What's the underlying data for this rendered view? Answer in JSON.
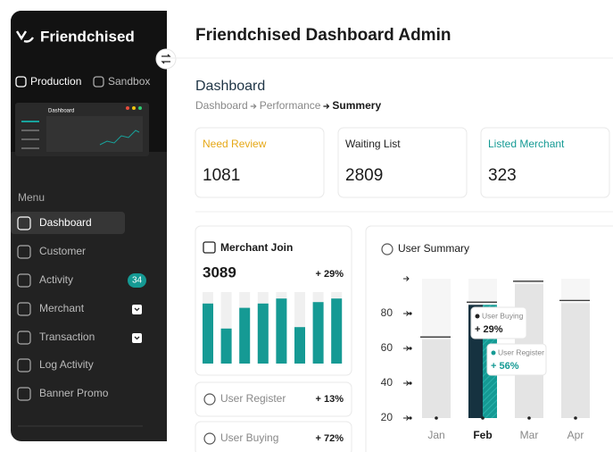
{
  "sidebar": {
    "brand": "Friendchised",
    "tabs": [
      "Production",
      "Sandbox"
    ],
    "preview_title": "Dashboard",
    "menu_label": "Menu",
    "menu": [
      {
        "label": "Dashboard"
      },
      {
        "label": "Customer"
      },
      {
        "label": "Activity",
        "badge": "34"
      },
      {
        "label": "Merchant"
      },
      {
        "label": "Transaction"
      },
      {
        "label": "Log Activity"
      },
      {
        "label": "Banner Promo"
      }
    ]
  },
  "header": {
    "title": "Friendchised Dashboard Admin"
  },
  "page": {
    "title": "Dashboard",
    "breadcrumb": [
      "Dashboard",
      "Performance",
      "Summery"
    ]
  },
  "stats": [
    {
      "label": "Need Review",
      "value": 1081
    },
    {
      "label": "Waiting List",
      "value": 2809
    },
    {
      "label": "Listed Merchant",
      "value": 323
    }
  ],
  "merchant_join": {
    "title": "Merchant Join",
    "total": 3089,
    "change": "+ 29%",
    "bars": [
      84,
      49,
      78,
      84,
      91,
      51,
      86,
      91
    ]
  },
  "metrics": [
    {
      "label": "User Register",
      "change": "+ 13%"
    },
    {
      "label": "User Buying",
      "change": "+ 72%"
    }
  ],
  "user_summary": {
    "title": "User Summary",
    "ylim": [
      20,
      100
    ],
    "yticks": [
      20,
      40,
      60,
      80
    ],
    "categories": [
      "Jan",
      "Feb",
      "Mar",
      "Apr"
    ],
    "values": [
      65,
      85,
      97,
      86
    ],
    "tooltips": [
      {
        "label": "User Buying",
        "value": "+ 29%"
      },
      {
        "label": "User Register",
        "value": "+ 56%"
      }
    ]
  }
}
